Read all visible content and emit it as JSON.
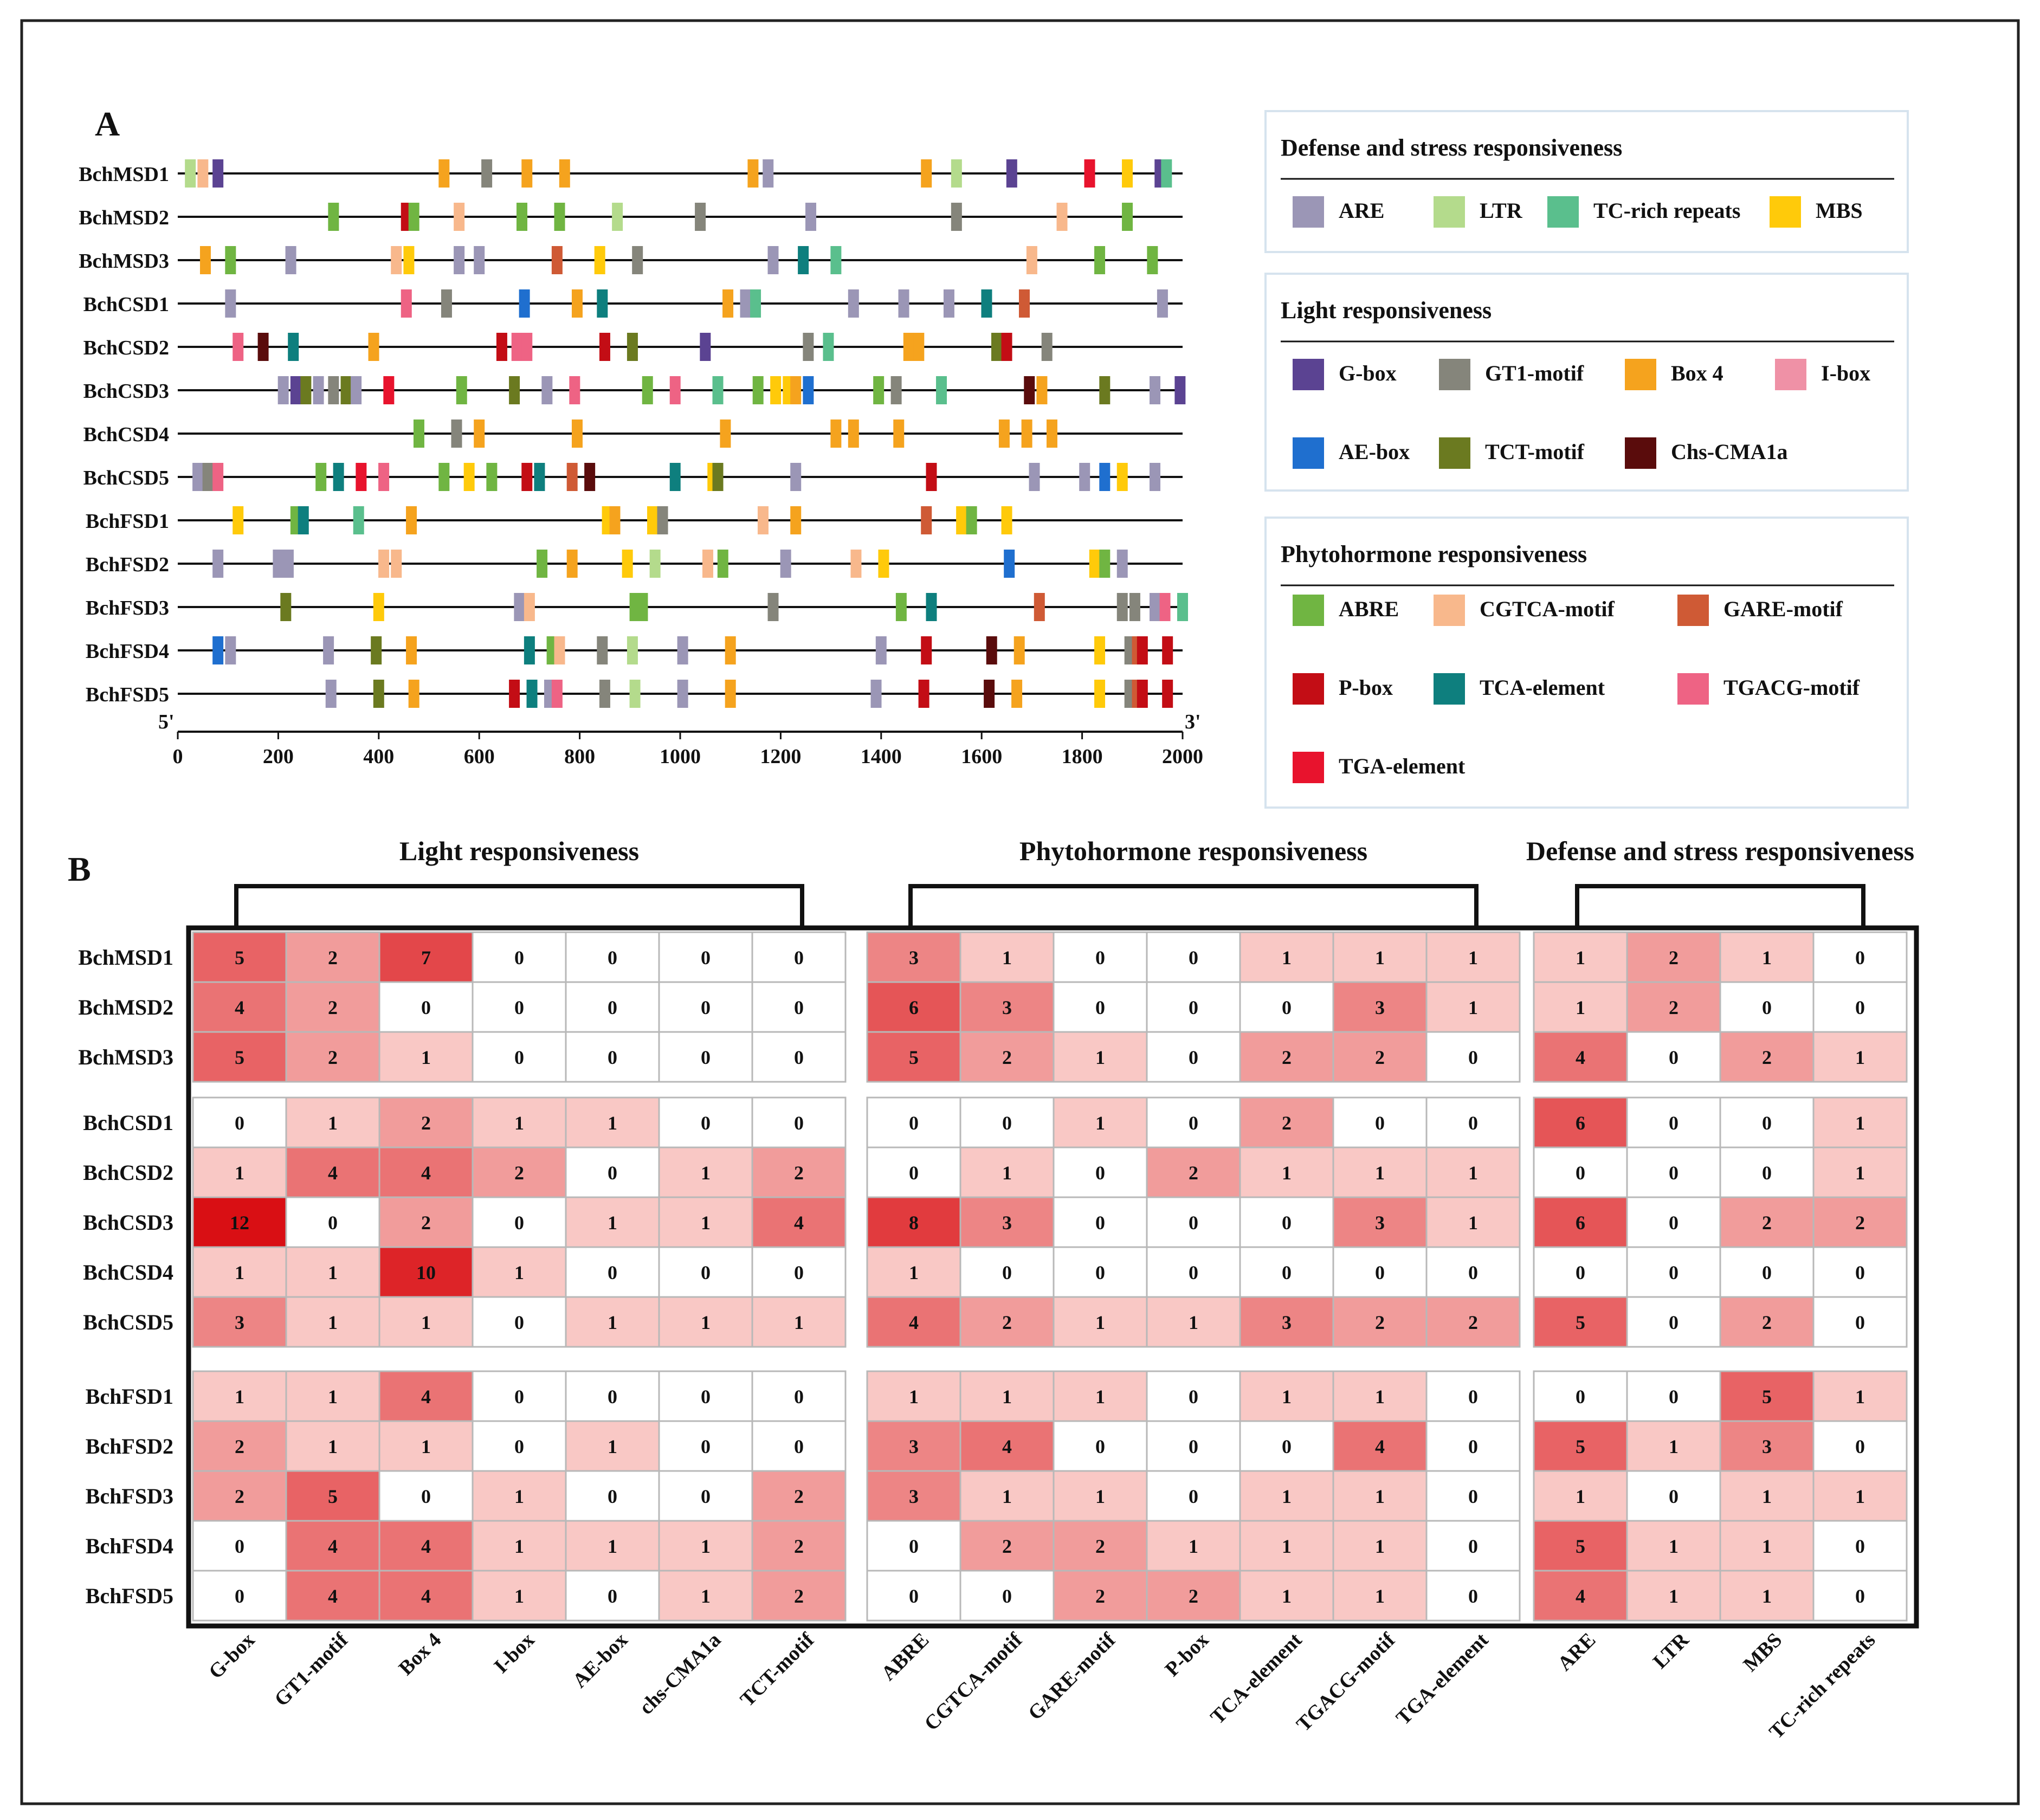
{
  "panel_a": {
    "label": "A",
    "genes": [
      "BchMSD1",
      "BchMSD2",
      "BchMSD3",
      "BchCSD1",
      "BchCSD2",
      "BchCSD3",
      "BchCSD4",
      "BchCSD5",
      "BchFSD1",
      "BchFSD2",
      "BchFSD3",
      "BchFSD4",
      "BchFSD5"
    ],
    "axis": {
      "start_label": "5'",
      "end_label": "3'",
      "min": 0,
      "max": 2000,
      "ticks": [
        "0",
        "200",
        "400",
        "600",
        "800",
        "1000",
        "1200",
        "1400",
        "1600",
        "1800",
        "2000"
      ],
      "tick_values": [
        0,
        200,
        400,
        600,
        800,
        1000,
        1200,
        1400,
        1600,
        1800,
        2000
      ]
    },
    "elements": [
      [
        [
          "LTR",
          25
        ],
        [
          "CGTCA",
          50
        ],
        [
          "G-box",
          80
        ],
        [
          "Box4",
          530
        ],
        [
          "GT1",
          615
        ],
        [
          "Box4",
          695
        ],
        [
          "Box4",
          770
        ],
        [
          "Box4",
          1145
        ],
        [
          "ARE",
          1175
        ],
        [
          "Box4",
          1490
        ],
        [
          "LTR",
          1550
        ],
        [
          "G-box",
          1660
        ],
        [
          "TGA",
          1815
        ],
        [
          "MBS",
          1890
        ],
        [
          "G-box",
          1955
        ],
        [
          "TC",
          1968
        ]
      ],
      [
        [
          "ABRE",
          310
        ],
        [
          "P-box",
          455
        ],
        [
          "ABRE",
          470
        ],
        [
          "CGTCA",
          560
        ],
        [
          "ABRE",
          685
        ],
        [
          "ABRE",
          760
        ],
        [
          "LTR",
          875
        ],
        [
          "GT1",
          1040
        ],
        [
          "ARE",
          1260
        ],
        [
          "GT1",
          1550
        ],
        [
          "CGTCA",
          1760
        ],
        [
          "ABRE",
          1890
        ]
      ],
      [
        [
          "Box4",
          55
        ],
        [
          "ABRE",
          105
        ],
        [
          "ARE",
          225
        ],
        [
          "CGTCA",
          435
        ],
        [
          "MBS",
          460
        ],
        [
          "ARE",
          560
        ],
        [
          "ARE",
          600
        ],
        [
          "GARE",
          755
        ],
        [
          "MBS",
          840
        ],
        [
          "GT1",
          915
        ],
        [
          "ARE",
          1185
        ],
        [
          "TCA",
          1245
        ],
        [
          "TC",
          1310
        ],
        [
          "CGTCA",
          1700
        ],
        [
          "ABRE",
          1835
        ],
        [
          "ABRE",
          1940
        ]
      ],
      [
        [
          "ARE",
          105
        ],
        [
          "TGACG",
          455
        ],
        [
          "GT1",
          535
        ],
        [
          "AE-box",
          690
        ],
        [
          "Box4",
          795
        ],
        [
          "TCA",
          845
        ],
        [
          "Box4",
          1095
        ],
        [
          "ARE",
          1130
        ],
        [
          "TC",
          1150
        ],
        [
          "ARE",
          1345
        ],
        [
          "ARE",
          1445
        ],
        [
          "ARE",
          1535
        ],
        [
          "TCA",
          1610
        ],
        [
          "GARE",
          1685
        ],
        [
          "ARE",
          1960
        ]
      ],
      [
        [
          "TGACG",
          120
        ],
        [
          "Chs",
          170
        ],
        [
          "TCA",
          230
        ],
        [
          "Box4",
          390
        ],
        [
          "P-box",
          645
        ],
        [
          "TGACG",
          675
        ],
        [
          "TGACG",
          695
        ],
        [
          "P-box",
          850
        ],
        [
          "TCT",
          905
        ],
        [
          "G-box",
          1050
        ],
        [
          "GT1",
          1255
        ],
        [
          "TC",
          1295
        ],
        [
          "Box4",
          1455
        ],
        [
          "Box4",
          1475
        ],
        [
          "TCT",
          1630
        ],
        [
          "P-box",
          1650
        ],
        [
          "GT1",
          1730
        ]
      ],
      [
        [
          "ARE",
          210
        ],
        [
          "G-box",
          235
        ],
        [
          "TCT",
          255
        ],
        [
          "ARE",
          280
        ],
        [
          "GT1",
          310
        ],
        [
          "TCT",
          335
        ],
        [
          "ARE",
          355
        ],
        [
          "TGA",
          420
        ],
        [
          "ABRE",
          565
        ],
        [
          "TCT",
          670
        ],
        [
          "ARE",
          735
        ],
        [
          "TGACG",
          790
        ],
        [
          "ABRE",
          935
        ],
        [
          "TGACG",
          990
        ],
        [
          "TC",
          1075
        ],
        [
          "ABRE",
          1155
        ],
        [
          "MBS",
          1190
        ],
        [
          "MBS",
          1215
        ],
        [
          "Box4",
          1230
        ],
        [
          "AE-box",
          1255
        ],
        [
          "ABRE",
          1395
        ],
        [
          "GT1",
          1430
        ],
        [
          "TC",
          1520
        ],
        [
          "Chs",
          1695
        ],
        [
          "Box4",
          1720
        ],
        [
          "TCT",
          1845
        ],
        [
          "ARE",
          1945
        ],
        [
          "G-box",
          1995
        ]
      ],
      [
        [
          "ABRE",
          480
        ],
        [
          "GT1",
          555
        ],
        [
          "Box4",
          600
        ],
        [
          "Box4",
          795
        ],
        [
          "Box4",
          1090
        ],
        [
          "Box4",
          1310
        ],
        [
          "Box4",
          1345
        ],
        [
          "Box4",
          1435
        ],
        [
          "Box4",
          1645
        ],
        [
          "Box4",
          1690
        ],
        [
          "Box4",
          1740
        ]
      ],
      [
        [
          "ARE",
          40
        ],
        [
          "GT1",
          60
        ],
        [
          "TGACG",
          80
        ],
        [
          "ABRE",
          285
        ],
        [
          "TCA",
          320
        ],
        [
          "TGA",
          365
        ],
        [
          "TGACG",
          410
        ],
        [
          "ABRE",
          530
        ],
        [
          "MBS",
          580
        ],
        [
          "ABRE",
          625
        ],
        [
          "P-box",
          695
        ],
        [
          "TCA",
          720
        ],
        [
          "GARE",
          785
        ],
        [
          "Chs",
          820
        ],
        [
          "TCA",
          990
        ],
        [
          "MBS",
          1065
        ],
        [
          "TCT",
          1075
        ],
        [
          "ARE",
          1230
        ],
        [
          "P-box",
          1500
        ],
        [
          "ARE",
          1705
        ],
        [
          "ARE",
          1805
        ],
        [
          "AE-box",
          1845
        ],
        [
          "MBS",
          1880
        ],
        [
          "ARE",
          1945
        ]
      ],
      [
        [
          "MBS",
          120
        ],
        [
          "ABRE",
          235
        ],
        [
          "TCA",
          250
        ],
        [
          "TC",
          360
        ],
        [
          "Box4",
          465
        ],
        [
          "MBS",
          855
        ],
        [
          "Box4",
          870
        ],
        [
          "MBS",
          945
        ],
        [
          "GT1",
          965
        ],
        [
          "CGTCA",
          1165
        ],
        [
          "Box4",
          1230
        ],
        [
          "GARE",
          1490
        ],
        [
          "MBS",
          1560
        ],
        [
          "ABRE",
          1580
        ],
        [
          "MBS",
          1650
        ]
      ],
      [
        [
          "ARE",
          80
        ],
        [
          "ARE",
          200
        ],
        [
          "ARE",
          220
        ],
        [
          "CGTCA",
          410
        ],
        [
          "CGTCA",
          435
        ],
        [
          "ABRE",
          725
        ],
        [
          "Box4",
          785
        ],
        [
          "MBS",
          895
        ],
        [
          "LTR",
          950
        ],
        [
          "CGTCA",
          1055
        ],
        [
          "ABRE",
          1085
        ],
        [
          "ARE",
          1210
        ],
        [
          "CGTCA",
          1350
        ],
        [
          "MBS",
          1405
        ],
        [
          "AE-box",
          1655
        ],
        [
          "MBS",
          1825
        ],
        [
          "ABRE",
          1845
        ],
        [
          "ARE",
          1880
        ]
      ],
      [
        [
          "TCT",
          215
        ],
        [
          "MBS",
          400
        ],
        [
          "ARE",
          680
        ],
        [
          "CGTCA",
          700
        ],
        [
          "ABRE",
          910
        ],
        [
          "ABRE",
          925
        ],
        [
          "GT1",
          1185
        ],
        [
          "ABRE",
          1440
        ],
        [
          "TCA",
          1500
        ],
        [
          "GARE",
          1715
        ],
        [
          "GT1",
          1880
        ],
        [
          "GT1",
          1905
        ],
        [
          "ARE",
          1945
        ],
        [
          "TGACG",
          1965
        ],
        [
          "TC",
          2000
        ]
      ],
      [
        [
          "AE-box",
          80
        ],
        [
          "ARE",
          105
        ],
        [
          "ARE",
          300
        ],
        [
          "TCT",
          395
        ],
        [
          "Box4",
          465
        ],
        [
          "TCA",
          700
        ],
        [
          "ABRE",
          745
        ],
        [
          "CGTCA",
          760
        ],
        [
          "GT1",
          845
        ],
        [
          "LTR",
          905
        ],
        [
          "ARE",
          1005
        ],
        [
          "Box4",
          1100
        ],
        [
          "ARE",
          1400
        ],
        [
          "P-box",
          1490
        ],
        [
          "Chs",
          1620
        ],
        [
          "Box4",
          1675
        ],
        [
          "MBS",
          1835
        ],
        [
          "GT1",
          1895
        ],
        [
          "GARE",
          1910
        ],
        [
          "P-box",
          1920
        ],
        [
          "P-box",
          1970
        ]
      ],
      [
        [
          "ARE",
          305
        ],
        [
          "TCT",
          400
        ],
        [
          "Box4",
          470
        ],
        [
          "P-box",
          670
        ],
        [
          "TCA",
          705
        ],
        [
          "ARE",
          740
        ],
        [
          "TGACG",
          755
        ],
        [
          "GT1",
          850
        ],
        [
          "LTR",
          910
        ],
        [
          "ARE",
          1005
        ],
        [
          "Box4",
          1100
        ],
        [
          "ARE",
          1390
        ],
        [
          "P-box",
          1485
        ],
        [
          "Chs",
          1615
        ],
        [
          "Box4",
          1670
        ],
        [
          "MBS",
          1835
        ],
        [
          "GT1",
          1895
        ],
        [
          "GARE",
          1910
        ],
        [
          "P-box",
          1920
        ],
        [
          "P-box",
          1970
        ]
      ]
    ]
  },
  "legend": {
    "groups": [
      {
        "title": "Defense and stress responsiveness",
        "items": [
          {
            "key": "ARE",
            "label": "ARE",
            "color": "#9b96b6"
          },
          {
            "key": "LTR",
            "label": "LTR",
            "color": "#b4db8c"
          },
          {
            "key": "TC",
            "label": "TC-rich repeats",
            "color": "#5abf8d"
          },
          {
            "key": "MBS",
            "label": "MBS",
            "color": "#ffca0a"
          }
        ]
      },
      {
        "title": "Light responsiveness",
        "items": [
          {
            "key": "G-box",
            "label": "G-box",
            "color": "#5b4392"
          },
          {
            "key": "GT1",
            "label": "GT1-motif",
            "color": "#85857b"
          },
          {
            "key": "Box4",
            "label": "Box 4",
            "color": "#f5a31e"
          },
          {
            "key": "I-box",
            "label": "I-box",
            "color": "#ef91a6"
          },
          {
            "key": "AE-box",
            "label": "AE-box",
            "color": "#1f6fcf"
          },
          {
            "key": "TCT",
            "label": "TCT-motif",
            "color": "#6b7a20"
          },
          {
            "key": "Chs",
            "label": "Chs-CMA1a",
            "color": "#5a0c0c"
          }
        ]
      },
      {
        "title": "Phytohormone responsiveness",
        "items": [
          {
            "key": "ABRE",
            "label": "ABRE",
            "color": "#70b542"
          },
          {
            "key": "CGTCA",
            "label": "CGTCA-motif",
            "color": "#f8b88c"
          },
          {
            "key": "GARE",
            "label": "GARE-motif",
            "color": "#cf5a35"
          },
          {
            "key": "P-box",
            "label": "P-box",
            "color": "#c30d15"
          },
          {
            "key": "TCA",
            "label": "TCA-element",
            "color": "#0e7f7e"
          },
          {
            "key": "TGACG",
            "label": "TGACG-motif",
            "color": "#ee6384"
          },
          {
            "key": "TGA",
            "label": "TGA-element",
            "color": "#e8132d"
          }
        ]
      }
    ]
  },
  "chart_data": {
    "type": "heatmap",
    "title": "B",
    "groups": [
      {
        "title": "Light responsiveness",
        "columns": [
          "G-box",
          "GT1-motif",
          "Box 4",
          "I-box",
          "AE-box",
          "chs-CMA1a",
          "TCT-motif"
        ]
      },
      {
        "title": "Phytohormone responsiveness",
        "columns": [
          "ABRE",
          "CGTCA-motif",
          "GARE-motif",
          "P-box",
          "TCA-element",
          "TGACG-motif",
          "TGA-element"
        ]
      },
      {
        "title": "Defense and stress responsiveness",
        "columns": [
          "ARE",
          "LTR",
          "MBS",
          "TC-rich repeats"
        ]
      }
    ],
    "row_blocks": [
      [
        "BchMSD1",
        "BchMSD2",
        "BchMSD3"
      ],
      [
        "BchCSD1",
        "BchCSD2",
        "BchCSD3",
        "BchCSD4",
        "BchCSD5"
      ],
      [
        "BchFSD1",
        "BchFSD2",
        "BchFSD3",
        "BchFSD4",
        "BchFSD5"
      ]
    ],
    "values": [
      [
        5,
        2,
        7,
        0,
        0,
        0,
        0,
        3,
        1,
        0,
        0,
        1,
        1,
        1,
        1,
        2,
        1,
        0
      ],
      [
        4,
        2,
        0,
        0,
        0,
        0,
        0,
        6,
        3,
        0,
        0,
        0,
        3,
        1,
        1,
        2,
        0,
        0
      ],
      [
        5,
        2,
        1,
        0,
        0,
        0,
        0,
        5,
        2,
        1,
        0,
        2,
        2,
        0,
        4,
        0,
        2,
        1
      ],
      [
        0,
        1,
        2,
        1,
        1,
        0,
        0,
        0,
        0,
        1,
        0,
        2,
        0,
        0,
        6,
        0,
        0,
        1
      ],
      [
        1,
        4,
        4,
        2,
        0,
        1,
        2,
        0,
        1,
        0,
        2,
        1,
        1,
        1,
        0,
        0,
        0,
        1
      ],
      [
        12,
        0,
        2,
        0,
        1,
        1,
        4,
        8,
        3,
        0,
        0,
        0,
        3,
        1,
        6,
        0,
        2,
        2
      ],
      [
        1,
        1,
        10,
        1,
        0,
        0,
        0,
        1,
        0,
        0,
        0,
        0,
        0,
        0,
        0,
        0,
        0,
        0
      ],
      [
        3,
        1,
        1,
        0,
        1,
        1,
        1,
        4,
        2,
        1,
        1,
        3,
        2,
        2,
        5,
        0,
        2,
        0
      ],
      [
        1,
        1,
        4,
        0,
        0,
        0,
        0,
        1,
        1,
        1,
        0,
        1,
        1,
        0,
        0,
        0,
        5,
        1
      ],
      [
        2,
        1,
        1,
        0,
        1,
        0,
        0,
        3,
        4,
        0,
        0,
        0,
        4,
        0,
        5,
        1,
        3,
        0
      ],
      [
        2,
        5,
        0,
        1,
        0,
        0,
        2,
        3,
        1,
        1,
        0,
        1,
        1,
        0,
        1,
        0,
        1,
        1
      ],
      [
        0,
        4,
        4,
        1,
        1,
        1,
        2,
        0,
        2,
        2,
        1,
        1,
        1,
        0,
        5,
        1,
        1,
        0
      ],
      [
        0,
        4,
        4,
        1,
        0,
        1,
        2,
        0,
        0,
        2,
        2,
        1,
        1,
        0,
        4,
        1,
        1,
        0
      ]
    ],
    "color_scale": {
      "zero": "#ffffff",
      "low": "#f9c8c5",
      "high": "#d90f14"
    }
  }
}
